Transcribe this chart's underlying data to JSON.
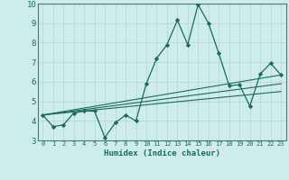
{
  "xlabel": "Humidex (Indice chaleur)",
  "background_color": "#cdecea",
  "grid_color": "#b8d8d6",
  "line_color": "#1a6b5e",
  "xlim": [
    -0.5,
    23.5
  ],
  "ylim": [
    3,
    10
  ],
  "yticks": [
    3,
    4,
    5,
    6,
    7,
    8,
    9,
    10
  ],
  "xticks": [
    0,
    1,
    2,
    3,
    4,
    5,
    6,
    7,
    8,
    9,
    10,
    11,
    12,
    13,
    14,
    15,
    16,
    17,
    18,
    19,
    20,
    21,
    22,
    23
  ],
  "lines": [
    {
      "x": [
        0,
        1,
        2,
        3,
        4,
        5,
        6,
        7,
        8,
        9,
        10,
        11,
        12,
        13,
        14,
        15,
        16,
        17,
        18,
        19,
        20,
        21,
        22,
        23
      ],
      "y": [
        4.3,
        3.7,
        3.8,
        4.4,
        4.5,
        4.5,
        3.15,
        3.9,
        4.3,
        4.0,
        5.9,
        7.2,
        7.9,
        9.15,
        7.9,
        9.95,
        9.0,
        7.45,
        5.8,
        5.85,
        4.75,
        6.4,
        6.95,
        6.35
      ],
      "marker": "D",
      "markersize": 2.2
    },
    {
      "x": [
        0,
        23
      ],
      "y": [
        4.3,
        6.35
      ],
      "marker": null
    },
    {
      "x": [
        0,
        23
      ],
      "y": [
        4.3,
        5.9
      ],
      "marker": null
    },
    {
      "x": [
        0,
        23
      ],
      "y": [
        4.3,
        5.5
      ],
      "marker": null
    }
  ]
}
